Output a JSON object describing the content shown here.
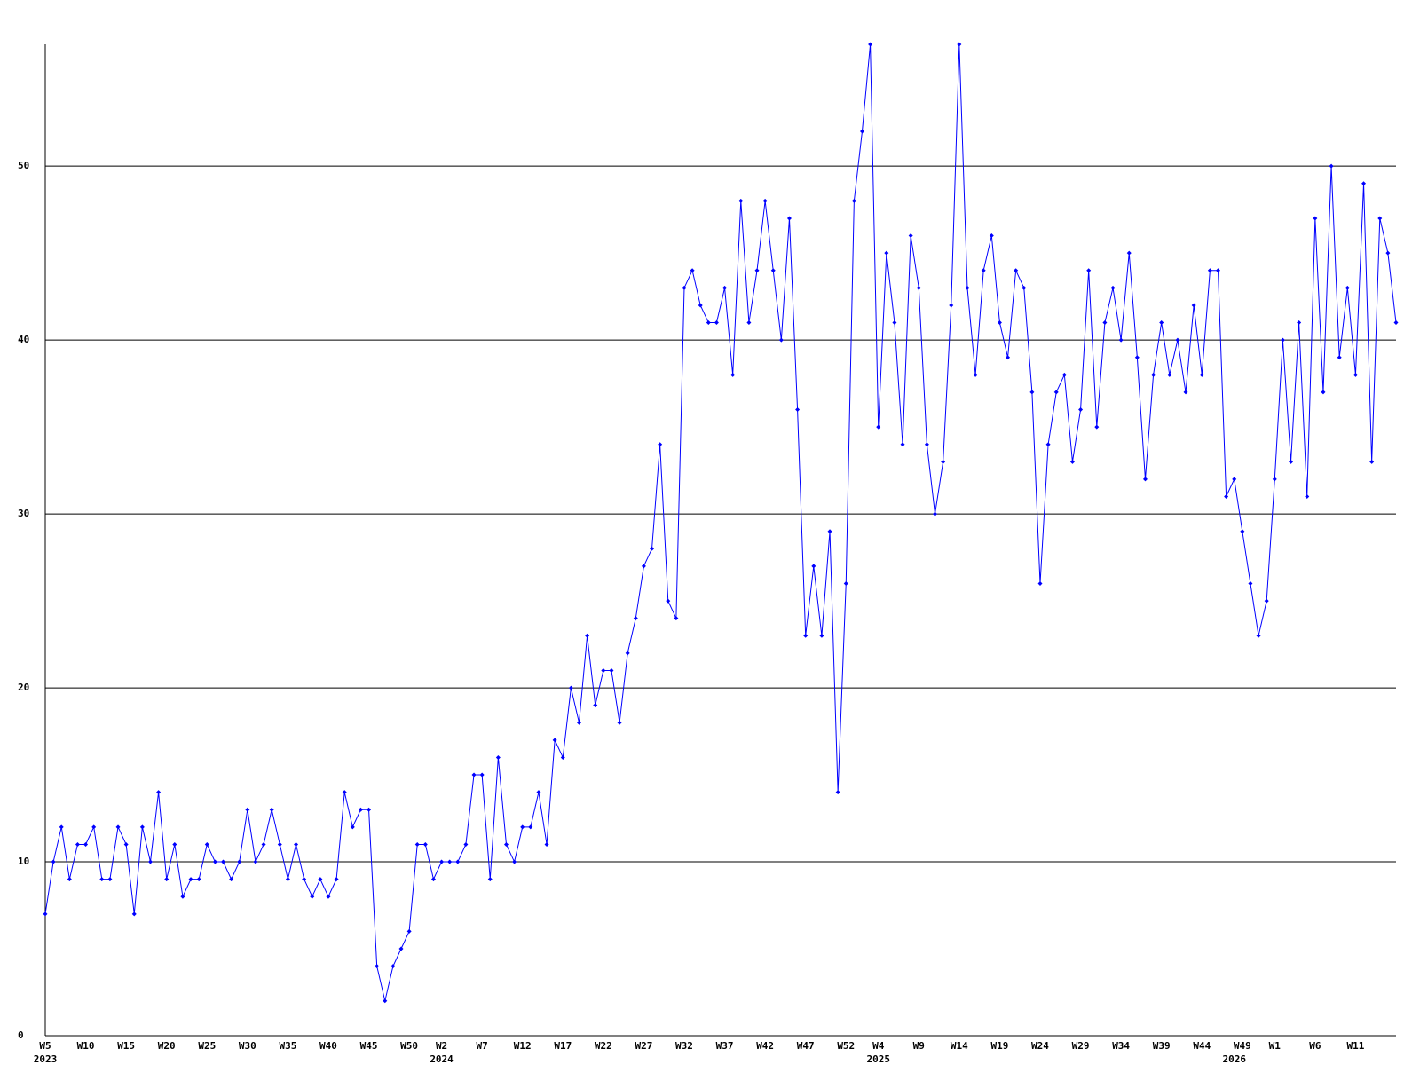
{
  "chart_data": {
    "type": "line",
    "categories": [
      "W5",
      null,
      null,
      null,
      null,
      "W10",
      null,
      null,
      null,
      null,
      "W15",
      null,
      null,
      null,
      null,
      "W20",
      null,
      null,
      null,
      null,
      "W25",
      null,
      null,
      null,
      null,
      "W30",
      null,
      null,
      null,
      null,
      "W35",
      null,
      null,
      null,
      null,
      "W40",
      null,
      null,
      null,
      null,
      "W45",
      null,
      null,
      null,
      null,
      "W50",
      null,
      null,
      null,
      "W2",
      null,
      null,
      null,
      null,
      "W7",
      null,
      null,
      null,
      null,
      "W12",
      null,
      null,
      null,
      null,
      "W17",
      null,
      null,
      null,
      null,
      "W22",
      null,
      null,
      null,
      null,
      "W27",
      null,
      null,
      null,
      null,
      "W32",
      null,
      null,
      null,
      null,
      "W37",
      null,
      null,
      null,
      null,
      "W42",
      null,
      null,
      null,
      null,
      "W47",
      null,
      null,
      null,
      null,
      "W52",
      null,
      null,
      null,
      "W4",
      null,
      null,
      null,
      null,
      "W9",
      null,
      null,
      null,
      null,
      "W14",
      null,
      null,
      null,
      null,
      "W19",
      null,
      null,
      null,
      null,
      "W24",
      null,
      null,
      null,
      null,
      "W29",
      null,
      null,
      null,
      null,
      "W34",
      null,
      null,
      null,
      null,
      "W39",
      null,
      null,
      null,
      null,
      "W44",
      null,
      null,
      null,
      null,
      "W49",
      null,
      null,
      null,
      "W1",
      null,
      null,
      null,
      null,
      "W6",
      null,
      null,
      null,
      null,
      "W11",
      null,
      null,
      null,
      null,
      null
    ],
    "year_categories": [
      "2023",
      null,
      null,
      null,
      null,
      null,
      null,
      null,
      null,
      null,
      null,
      null,
      null,
      null,
      null,
      null,
      null,
      null,
      null,
      null,
      null,
      null,
      null,
      null,
      null,
      null,
      null,
      null,
      null,
      null,
      null,
      null,
      null,
      null,
      null,
      null,
      null,
      null,
      null,
      null,
      null,
      null,
      null,
      null,
      null,
      null,
      null,
      null,
      null,
      "2024",
      null,
      null,
      null,
      null,
      null,
      null,
      null,
      null,
      null,
      null,
      null,
      null,
      null,
      null,
      null,
      null,
      null,
      null,
      null,
      null,
      null,
      null,
      null,
      null,
      null,
      null,
      null,
      null,
      null,
      null,
      null,
      null,
      null,
      null,
      null,
      null,
      null,
      null,
      null,
      null,
      null,
      null,
      null,
      null,
      null,
      null,
      null,
      null,
      null,
      null,
      null,
      null,
      null,
      "2025",
      null,
      null,
      null,
      null,
      null,
      null,
      null,
      null,
      null,
      null,
      null,
      null,
      null,
      null,
      null,
      null,
      null,
      null,
      null,
      null,
      null,
      null,
      null,
      null,
      null,
      null,
      null,
      null,
      null,
      null,
      null,
      null,
      null,
      null,
      null,
      null,
      null,
      null,
      null,
      null,
      null,
      null,
      null,
      "2026",
      null,
      null,
      null,
      null,
      null,
      null,
      null,
      null,
      null,
      null,
      null,
      null,
      null,
      null,
      null
    ],
    "series": [
      {
        "color": "#0000ff",
        "values": [
          7,
          10,
          12,
          9,
          11,
          11,
          12,
          9,
          9,
          12,
          11,
          7,
          12,
          10,
          14,
          9,
          11,
          8,
          9,
          9,
          11,
          10,
          10,
          9,
          10,
          13,
          10,
          11,
          13,
          11,
          9,
          11,
          9,
          8,
          9,
          8,
          9,
          14,
          12,
          13,
          13,
          4,
          2,
          4,
          5,
          6,
          11,
          11,
          9,
          10,
          10,
          10,
          11,
          15,
          15,
          9,
          16,
          11,
          10,
          12,
          12,
          14,
          11,
          17,
          16,
          20,
          18,
          23,
          19,
          21,
          21,
          18,
          22,
          24,
          27,
          28,
          34,
          25,
          24,
          43,
          44,
          42,
          41,
          41,
          43,
          38,
          48,
          41,
          44,
          48,
          44,
          40,
          47,
          36,
          23,
          27,
          23,
          29,
          14,
          26,
          48,
          52,
          57,
          35,
          45,
          41,
          34,
          46,
          43,
          34,
          30,
          33,
          42,
          57,
          43,
          38,
          44,
          46,
          41,
          39,
          44,
          43,
          37,
          26,
          34,
          37,
          38,
          33,
          36,
          44,
          35,
          41,
          43,
          40,
          45,
          39,
          32,
          38,
          41,
          38,
          40,
          37,
          42,
          38,
          44,
          44,
          31,
          32,
          29,
          26,
          23,
          25,
          32,
          40,
          33,
          41,
          31,
          47,
          37,
          50,
          39,
          43,
          38,
          49,
          33,
          47,
          45,
          41
        ]
      }
    ],
    "ylim": [
      0,
      57
    ],
    "yticks": [
      0,
      10,
      20,
      30,
      40,
      50
    ],
    "grid": true
  }
}
